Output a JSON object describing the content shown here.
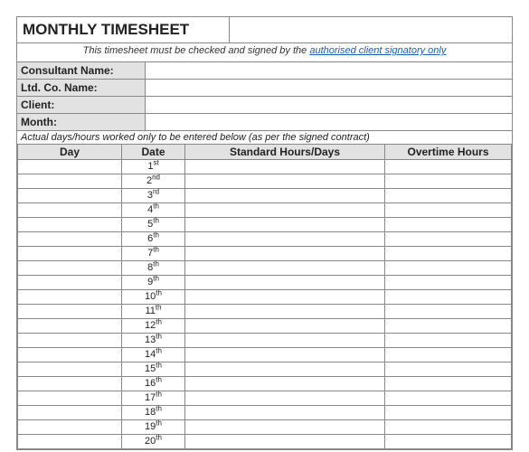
{
  "title": "MONTHLY TIMESHEET",
  "note_prefix": "This timesheet must be checked and signed by the ",
  "note_link": "authorised client signatory only",
  "fields": [
    {
      "label": "Consultant Name:",
      "value": ""
    },
    {
      "label": "Ltd. Co. Name:",
      "value": ""
    },
    {
      "label": "Client:",
      "value": ""
    },
    {
      "label": "Month:",
      "value": ""
    }
  ],
  "instruction": "Actual days/hours worked only to be entered below (as per the signed contract)",
  "columns": [
    "Day",
    "Date",
    "Standard Hours/Days",
    "Overtime Hours"
  ],
  "rows": [
    {
      "day": "",
      "date_num": "1",
      "date_suf": "st",
      "std": "",
      "ot": ""
    },
    {
      "day": "",
      "date_num": "2",
      "date_suf": "nd",
      "std": "",
      "ot": ""
    },
    {
      "day": "",
      "date_num": "3",
      "date_suf": "rd",
      "std": "",
      "ot": ""
    },
    {
      "day": "",
      "date_num": "4",
      "date_suf": "th",
      "std": "",
      "ot": ""
    },
    {
      "day": "",
      "date_num": "5",
      "date_suf": "th",
      "std": "",
      "ot": ""
    },
    {
      "day": "",
      "date_num": "6",
      "date_suf": "th",
      "std": "",
      "ot": ""
    },
    {
      "day": "",
      "date_num": "7",
      "date_suf": "th",
      "std": "",
      "ot": ""
    },
    {
      "day": "",
      "date_num": "8",
      "date_suf": "th",
      "std": "",
      "ot": ""
    },
    {
      "day": "",
      "date_num": "9",
      "date_suf": "th",
      "std": "",
      "ot": ""
    },
    {
      "day": "",
      "date_num": "10",
      "date_suf": "th",
      "std": "",
      "ot": ""
    },
    {
      "day": "",
      "date_num": "11",
      "date_suf": "th",
      "std": "",
      "ot": ""
    },
    {
      "day": "",
      "date_num": "12",
      "date_suf": "th",
      "std": "",
      "ot": ""
    },
    {
      "day": "",
      "date_num": "13",
      "date_suf": "th",
      "std": "",
      "ot": ""
    },
    {
      "day": "",
      "date_num": "14",
      "date_suf": "th",
      "std": "",
      "ot": ""
    },
    {
      "day": "",
      "date_num": "15",
      "date_suf": "th",
      "std": "",
      "ot": ""
    },
    {
      "day": "",
      "date_num": "16",
      "date_suf": "th",
      "std": "",
      "ot": ""
    },
    {
      "day": "",
      "date_num": "17",
      "date_suf": "th",
      "std": "",
      "ot": ""
    },
    {
      "day": "",
      "date_num": "18",
      "date_suf": "th",
      "std": "",
      "ot": ""
    },
    {
      "day": "",
      "date_num": "19",
      "date_suf": "th",
      "std": "",
      "ot": ""
    },
    {
      "day": "",
      "date_num": "20",
      "date_suf": "th",
      "std": "",
      "ot": ""
    }
  ],
  "colors": {
    "border": "#888888",
    "header_bg": "#e2e2e2",
    "link": "#1a5db7",
    "text": "#222222",
    "background": "#ffffff"
  }
}
